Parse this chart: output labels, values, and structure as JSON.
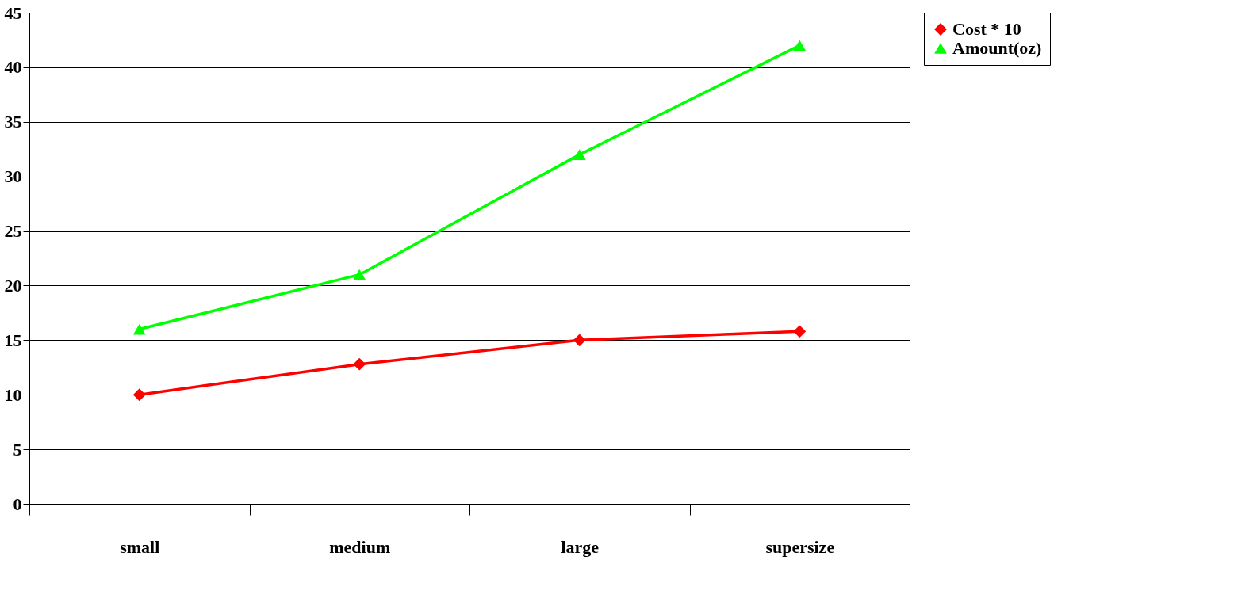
{
  "chart_data": {
    "type": "line",
    "categories": [
      "small",
      "medium",
      "large",
      "supersize"
    ],
    "series": [
      {
        "name": "Cost * 10",
        "color": "#ff0000",
        "marker": "diamond",
        "values": [
          10,
          12.8,
          15,
          15.8
        ]
      },
      {
        "name": "Amount(oz)",
        "color": "#00ff00",
        "marker": "triangle",
        "values": [
          16,
          21,
          32,
          42
        ]
      }
    ],
    "ylim": [
      0,
      45
    ],
    "yticks": [
      0,
      5,
      10,
      15,
      20,
      25,
      30,
      35,
      40,
      45
    ],
    "grid": "y",
    "legend": "right",
    "line_style": "solid"
  }
}
